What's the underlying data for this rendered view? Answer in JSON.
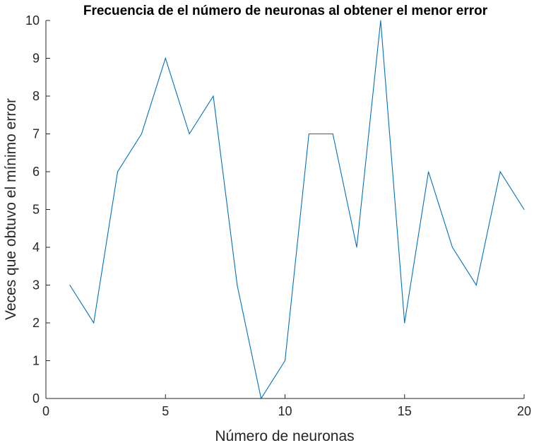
{
  "chart_data": {
    "type": "line",
    "title": "Frecuencia de el número de neuronas al obtener el menor error",
    "xlabel": "Número de neuronas",
    "ylabel": "Veces que obtuvo el mínimo error",
    "xlim": [
      0,
      20
    ],
    "ylim": [
      0,
      10
    ],
    "xticks": [
      "0",
      "5",
      "10",
      "15",
      "20"
    ],
    "yticks": [
      "0",
      "1",
      "2",
      "3",
      "4",
      "5",
      "6",
      "7",
      "8",
      "9",
      "10"
    ],
    "grid": false,
    "legend": "none",
    "series": [
      {
        "color": "#0072BD",
        "x": [
          1,
          2,
          3,
          4,
          5,
          6,
          7,
          8,
          9,
          10,
          11,
          12,
          13,
          14,
          15,
          16,
          17,
          18,
          19,
          20
        ],
        "y": [
          3,
          2,
          6,
          7,
          9,
          7,
          8,
          3,
          0,
          1,
          7,
          7,
          4,
          10,
          2,
          6,
          4,
          3,
          6,
          5
        ]
      }
    ]
  }
}
